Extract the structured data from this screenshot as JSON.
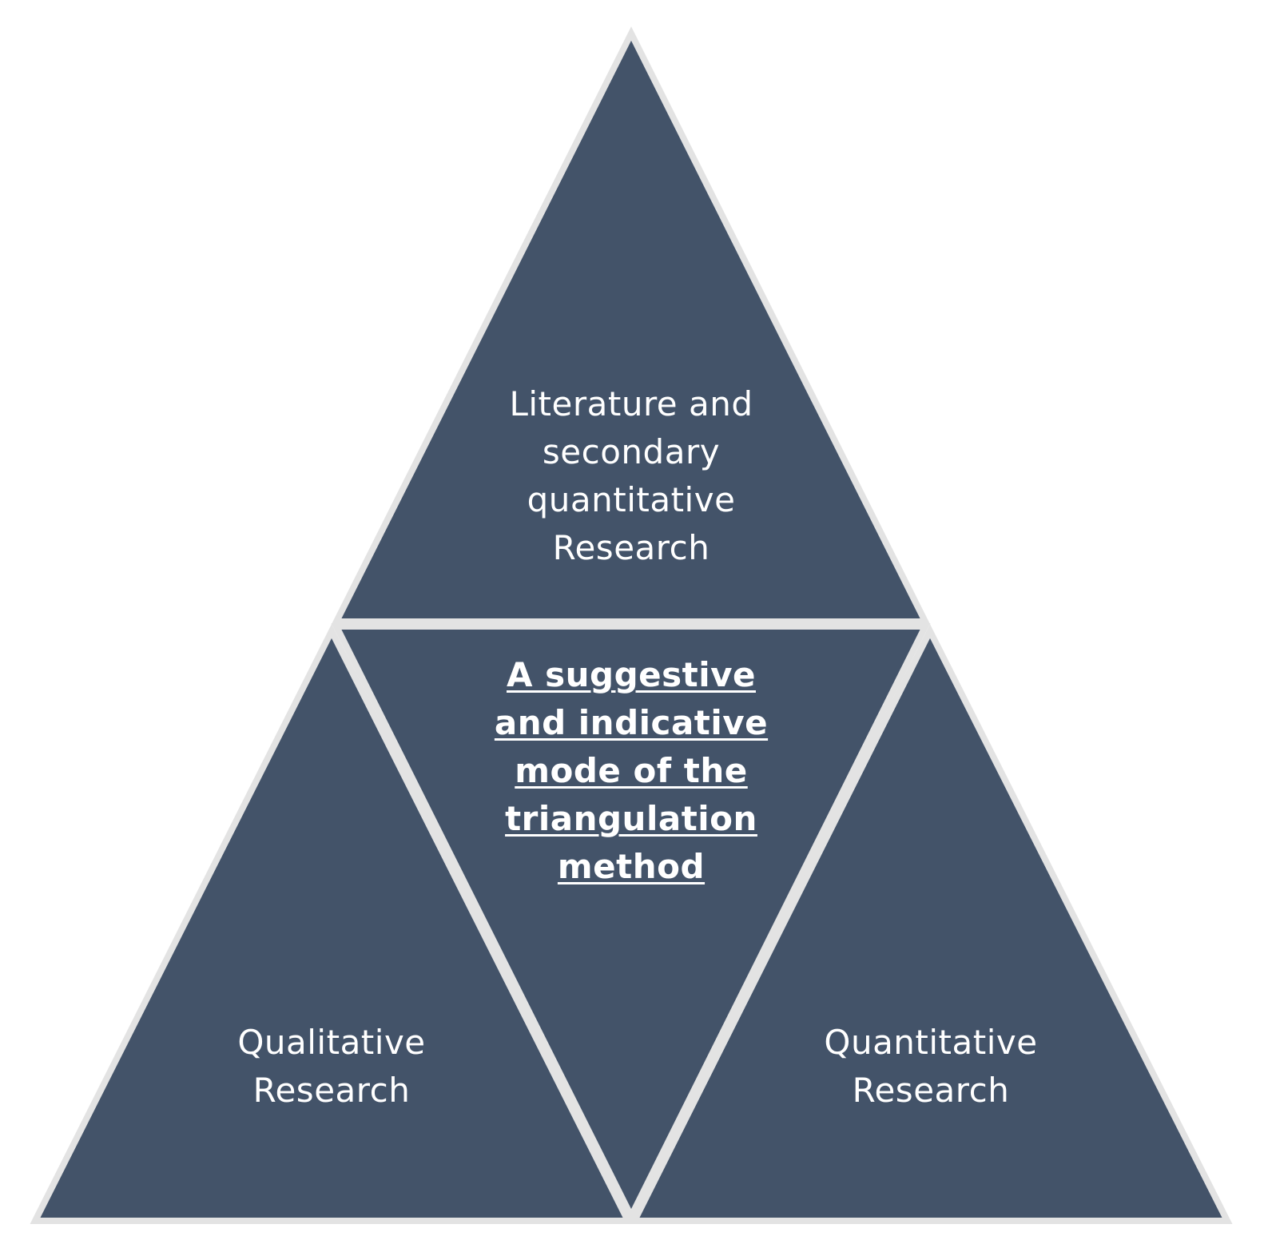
{
  "colors": {
    "triangle_fill": "#435369",
    "outline": "#e3e3e3",
    "text": "#ffffff",
    "background": "#ffffff"
  },
  "triangles": {
    "top": {
      "lines": [
        "Literature and",
        "secondary",
        "quantitative",
        "Research"
      ]
    },
    "center": {
      "lines": [
        "A suggestive",
        "and indicative",
        "mode of the",
        "triangulation",
        "method"
      ]
    },
    "left": {
      "lines": [
        "Qualitative",
        "Research"
      ]
    },
    "right": {
      "lines": [
        "Quantitative",
        "Research"
      ]
    }
  }
}
